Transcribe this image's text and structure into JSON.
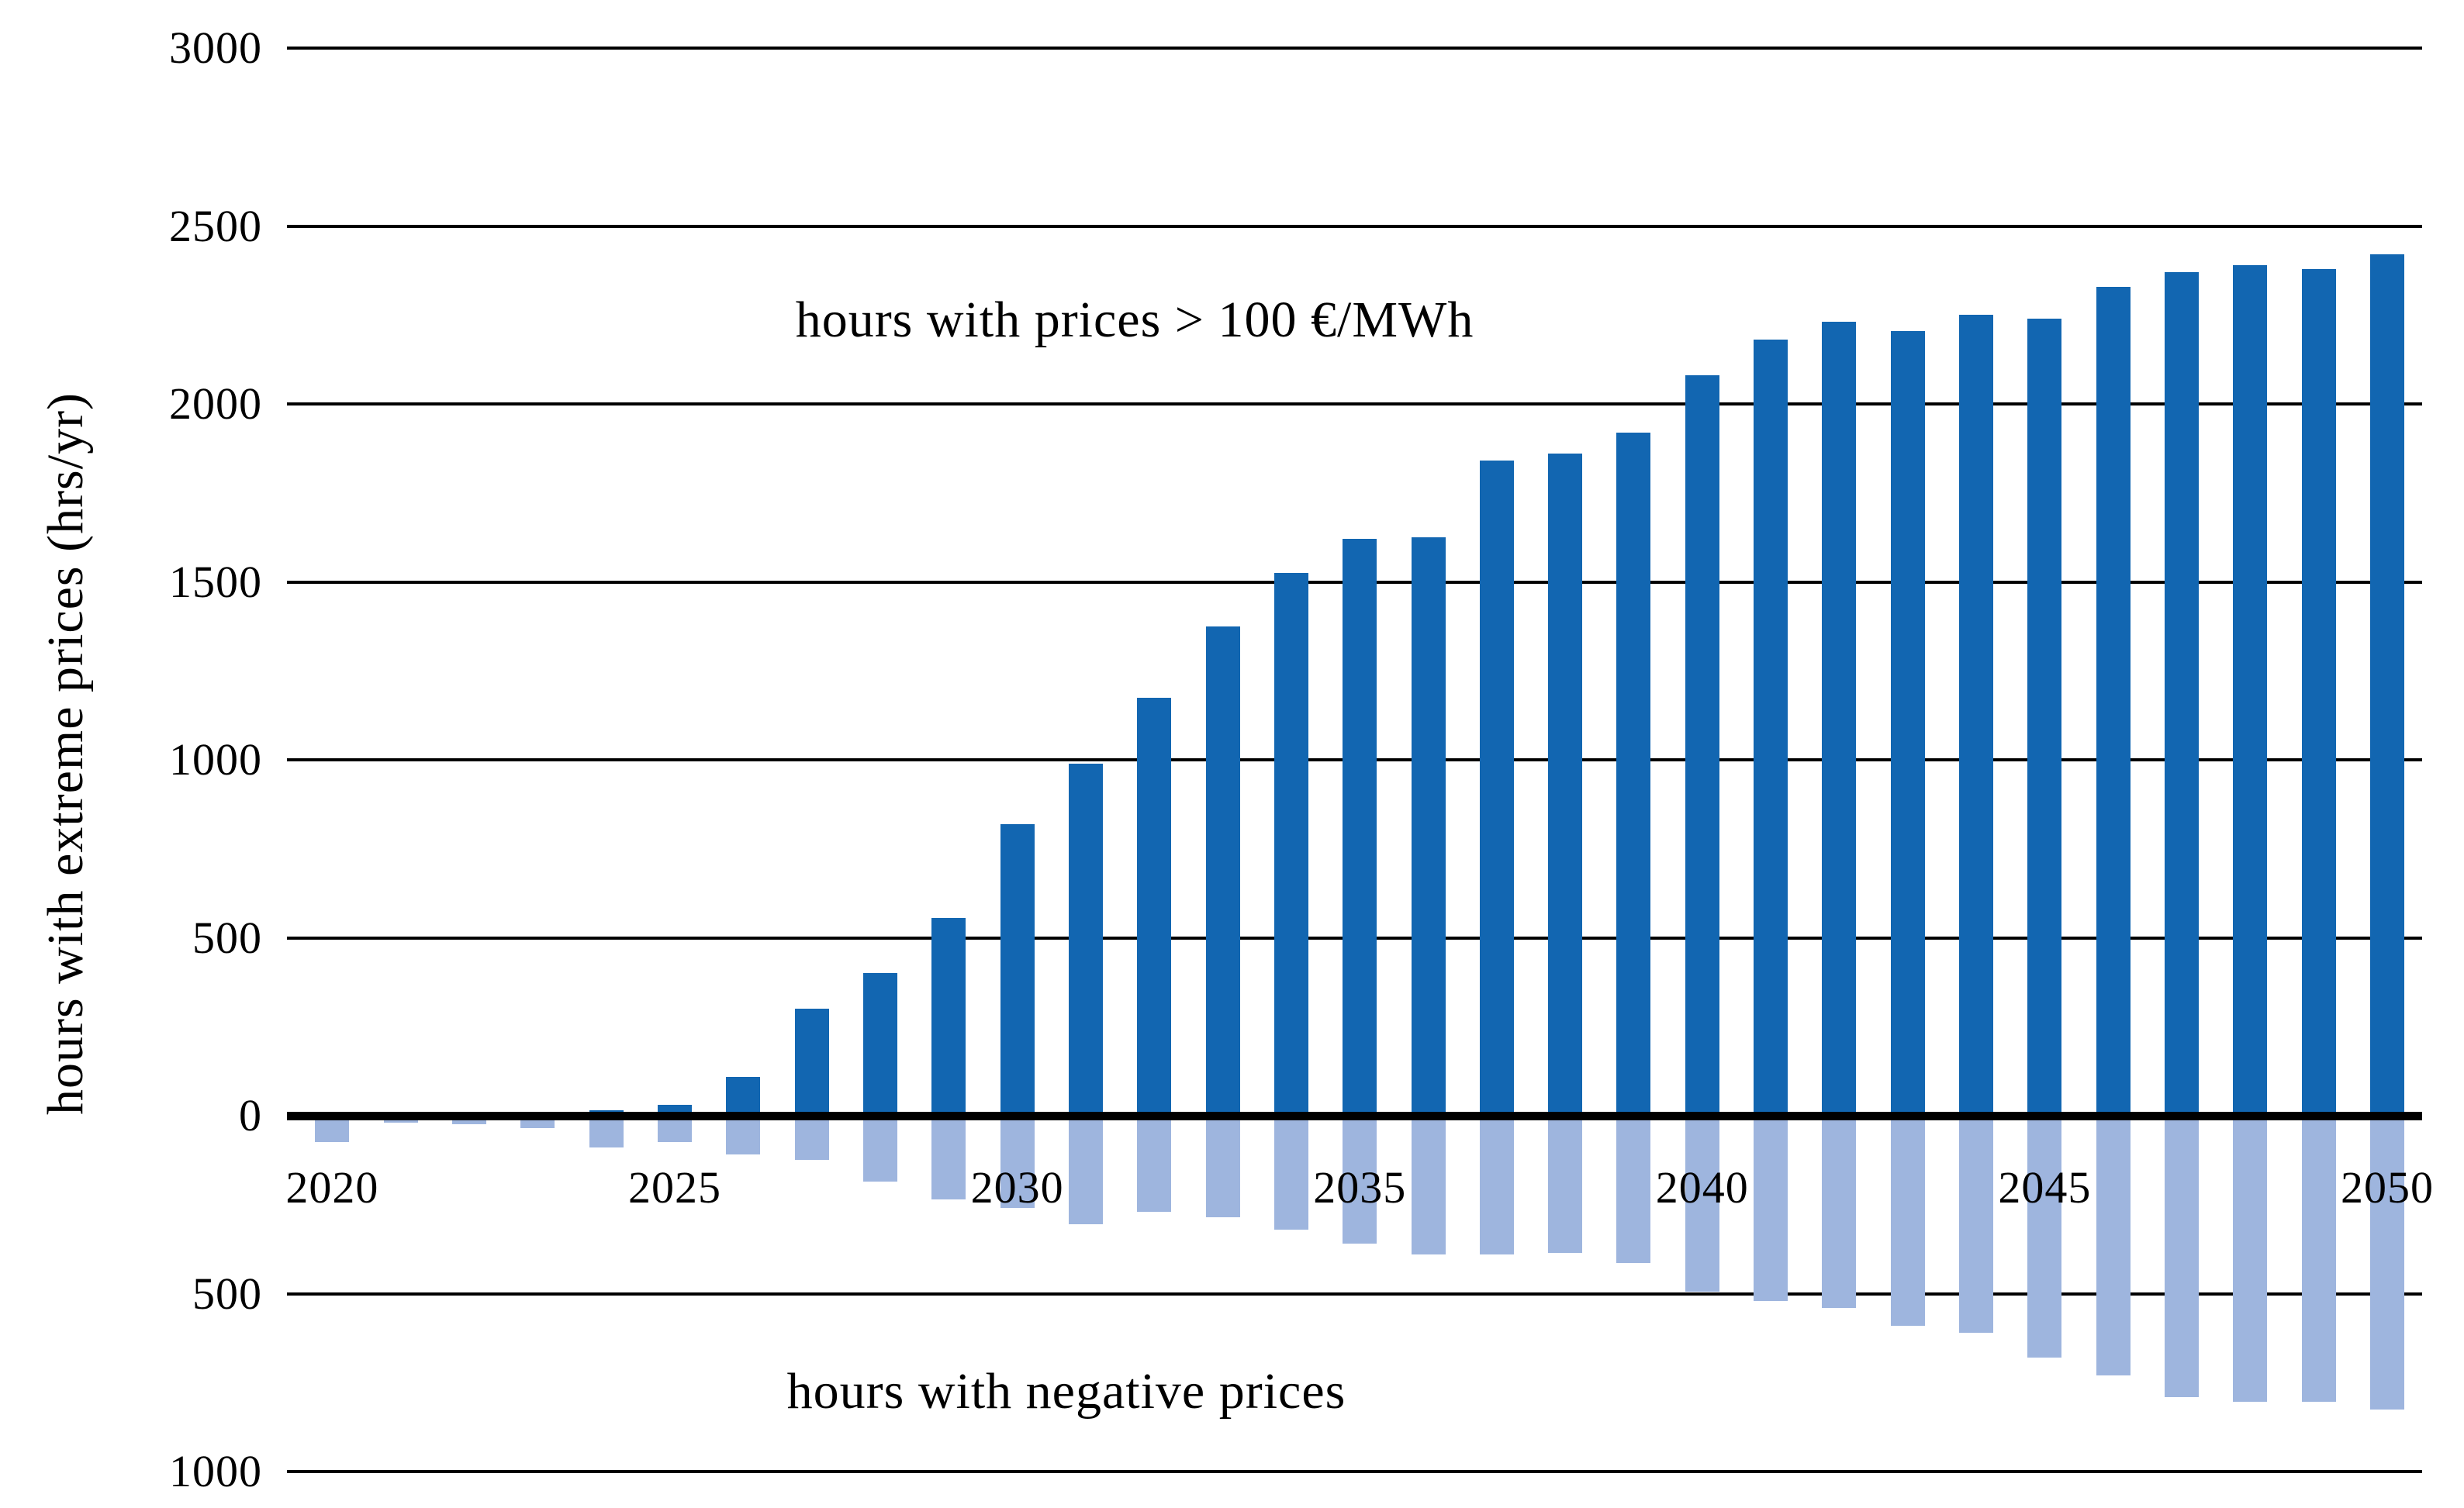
{
  "chart_data": {
    "type": "bar",
    "title": "",
    "xlabel": "",
    "ylabel": "hours with extreme prices (hrs/yr)",
    "ylim": [
      -1000,
      3000
    ],
    "grid": true,
    "legend_position": "none",
    "categories": [
      2020,
      2021,
      2022,
      2023,
      2024,
      2025,
      2026,
      2027,
      2028,
      2029,
      2030,
      2031,
      2032,
      2033,
      2034,
      2035,
      2036,
      2037,
      2038,
      2039,
      2040,
      2041,
      2042,
      2043,
      2044,
      2045,
      2046,
      2047,
      2048,
      2049,
      2050
    ],
    "series": [
      {
        "name": "hours with prices > 100 €/MWh",
        "color": "#1266B1",
        "values": [
          0,
          0,
          0,
          5,
          15,
          30,
          110,
          300,
          400,
          555,
          820,
          990,
          1175,
          1375,
          1525,
          1620,
          1625,
          1840,
          1860,
          1920,
          2080,
          2180,
          2230,
          2205,
          2250,
          2240,
          2330,
          2370,
          2390,
          2380,
          2420
        ]
      },
      {
        "name": "hours with negative prices",
        "color": "#9EB5DE",
        "values": [
          -75,
          -20,
          -25,
          -35,
          -90,
          -75,
          -110,
          -125,
          -185,
          -235,
          -260,
          -305,
          -270,
          -285,
          -320,
          -360,
          -390,
          -390,
          -385,
          -415,
          -495,
          -520,
          -540,
          -590,
          -610,
          -680,
          -730,
          -790,
          -805,
          -805,
          -825
        ]
      }
    ],
    "y_tick_values": [
      3000,
      2500,
      2000,
      1500,
      1000,
      500,
      0,
      -500,
      -1000
    ],
    "y_tick_labels": [
      "3000",
      "2500",
      "2000",
      "1500",
      "1000",
      "500",
      "0",
      "500",
      "1000"
    ],
    "x_tick_values": [
      2020,
      2025,
      2030,
      2035,
      2040,
      2045,
      2050
    ],
    "x_tick_labels": [
      "2020",
      "2025",
      "2030",
      "2035",
      "2040",
      "2045",
      "2050"
    ],
    "annotations": [
      {
        "text": "hours with prices > 100 €/MWh",
        "x": 1463,
        "y": 413
      },
      {
        "text": "hours with negative prices",
        "x": 1375,
        "y": 1795
      }
    ]
  }
}
